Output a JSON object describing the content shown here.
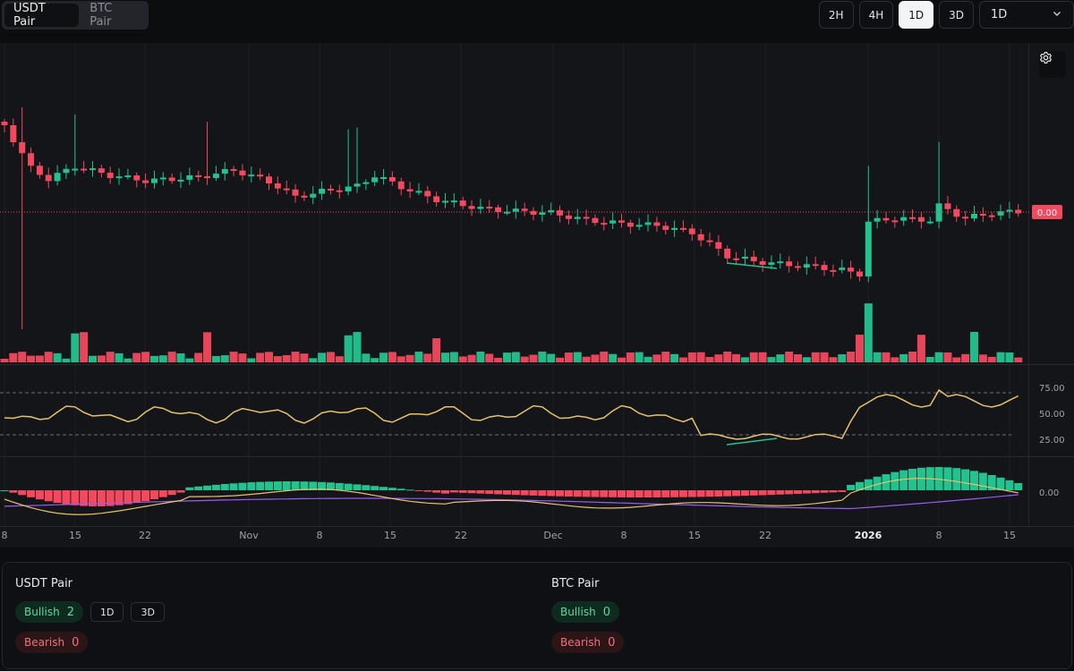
{
  "pair_tabs": [
    {
      "label": "USDT Pair",
      "active": true
    },
    {
      "label": "BTC Pair",
      "active": false
    }
  ],
  "timeframes": [
    {
      "label": "2H",
      "active": false
    },
    {
      "label": "4H",
      "active": false
    },
    {
      "label": "1D",
      "active": true
    },
    {
      "label": "3D",
      "active": false
    }
  ],
  "timeframe_select": {
    "value": "1D"
  },
  "icons": {
    "settings": "gear-icon",
    "dropdown": "chevron-down-icon"
  },
  "colors": {
    "bull": "#22c38e",
    "bear": "#f2495e",
    "rsi": "#e8c26a",
    "macd_signal": "#9b5cf0",
    "price_tag": "#f2495e"
  },
  "chart_data": {
    "type": "candlestick",
    "price_tag": "0.00",
    "x_ticks": [
      {
        "label": "8",
        "bold": false
      },
      {
        "label": "15",
        "bold": false
      },
      {
        "label": "22",
        "bold": false
      },
      {
        "label": "Nov",
        "bold": false
      },
      {
        "label": "8",
        "bold": false
      },
      {
        "label": "15",
        "bold": false
      },
      {
        "label": "22",
        "bold": false
      },
      {
        "label": "Dec",
        "bold": false
      },
      {
        "label": "8",
        "bold": false
      },
      {
        "label": "15",
        "bold": false
      },
      {
        "label": "22",
        "bold": false
      },
      {
        "label": "2026",
        "bold": true
      },
      {
        "label": "8",
        "bold": false
      },
      {
        "label": "15",
        "bold": false
      }
    ],
    "rsi": {
      "ticks": [
        "75.00",
        "50.00",
        "25.00"
      ],
      "levels": [
        70,
        30
      ],
      "range": [
        0,
        100
      ]
    },
    "macd": {
      "ticks": [
        "0.00"
      ]
    }
  },
  "summary": [
    {
      "title": "USDT Pair",
      "bullish_label": "Bullish",
      "bullish_count": "2",
      "bearish_label": "Bearish",
      "bearish_count": "0",
      "buttons": [
        "1D",
        "3D"
      ]
    },
    {
      "title": "BTC Pair",
      "bullish_label": "Bullish",
      "bullish_count": "0",
      "bearish_label": "Bearish",
      "bearish_count": "0",
      "buttons": []
    }
  ]
}
